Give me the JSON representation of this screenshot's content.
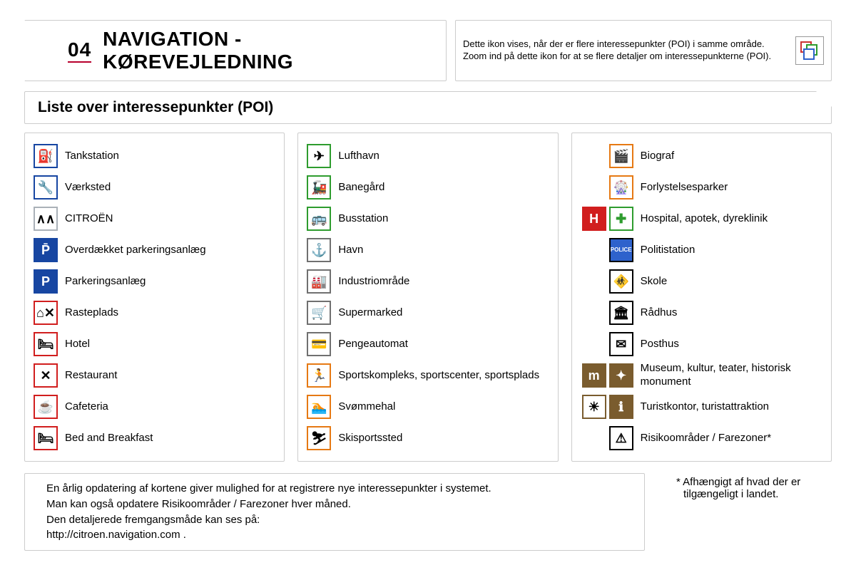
{
  "header": {
    "section_number": "04",
    "title": "NAVIGATION - KØREVEJLEDNING",
    "note": "Dette ikon vises, når der er flere interessepunkter (POI) i samme område. Zoom ind på dette ikon for at se flere detaljer om interessepunkterne (POI)."
  },
  "subtitle": "Liste over interessepunkter (POI)",
  "columns": {
    "col1": [
      {
        "label": "Tankstation",
        "icons": [
          {
            "glyph": "⛽",
            "border": "b-blue"
          }
        ]
      },
      {
        "label": "Værksted",
        "icons": [
          {
            "glyph": "🔧",
            "border": "b-blue"
          }
        ]
      },
      {
        "label": "CITROËN",
        "icons": [
          {
            "glyph": "∧∧",
            "border": "b-silver"
          }
        ]
      },
      {
        "label": "Overdækket parkeringsanlæg",
        "icons": [
          {
            "glyph": "P̄",
            "border": "b-blue",
            "fill": "fill-blue"
          }
        ]
      },
      {
        "label": "Parkeringsanlæg",
        "icons": [
          {
            "glyph": "P",
            "border": "b-blue",
            "fill": "fill-blue"
          }
        ]
      },
      {
        "label": "Rasteplads",
        "icons": [
          {
            "glyph": "⌂✕",
            "border": "b-red"
          }
        ]
      },
      {
        "label": "Hotel",
        "icons": [
          {
            "glyph": "🛏",
            "border": "b-red"
          }
        ]
      },
      {
        "label": "Restaurant",
        "icons": [
          {
            "glyph": "✕",
            "border": "b-red"
          }
        ]
      },
      {
        "label": "Cafeteria",
        "icons": [
          {
            "glyph": "☕",
            "border": "b-red"
          }
        ]
      },
      {
        "label": "Bed and Breakfast",
        "icons": [
          {
            "glyph": "🛏",
            "border": "b-red"
          }
        ]
      }
    ],
    "col2": [
      {
        "label": "Lufthavn",
        "icons": [
          {
            "glyph": "✈",
            "border": "b-green"
          }
        ]
      },
      {
        "label": "Banegård",
        "icons": [
          {
            "glyph": "🚂",
            "border": "b-green"
          }
        ]
      },
      {
        "label": "Busstation",
        "icons": [
          {
            "glyph": "🚌",
            "border": "b-green"
          }
        ]
      },
      {
        "label": "Havn",
        "icons": [
          {
            "glyph": "⚓",
            "border": "b-gray"
          }
        ]
      },
      {
        "label": "Industriområde",
        "icons": [
          {
            "glyph": "🏭",
            "border": "b-gray"
          }
        ]
      },
      {
        "label": "Supermarked",
        "icons": [
          {
            "glyph": "🛒",
            "border": "b-gray"
          }
        ]
      },
      {
        "label": "Pengeautomat",
        "icons": [
          {
            "glyph": "💳",
            "border": "b-gray"
          }
        ]
      },
      {
        "label": "Sportskompleks, sportscenter, sportsplads",
        "icons": [
          {
            "glyph": "🏃",
            "border": "b-orange"
          }
        ]
      },
      {
        "label": "Svømmehal",
        "icons": [
          {
            "glyph": "🏊",
            "border": "b-orange"
          }
        ]
      },
      {
        "label": "Skisportssted",
        "icons": [
          {
            "glyph": "⛷",
            "border": "b-orange"
          }
        ]
      }
    ],
    "col3": [
      {
        "label": "Biograf",
        "icons": [
          {
            "glyph": "🎬",
            "border": "b-orange"
          }
        ]
      },
      {
        "label": "Forlystelsesparker",
        "icons": [
          {
            "glyph": "🎡",
            "border": "b-orange"
          }
        ]
      },
      {
        "label": "Hospital, apotek, dyreklinik",
        "icons": [
          {
            "glyph": "H",
            "border": "b-red",
            "fill": "fill-red"
          },
          {
            "glyph": "✚",
            "border": "b-green",
            "color": "#2e9c2e"
          }
        ]
      },
      {
        "label": "Politistation",
        "icons": [
          {
            "glyph": "POLICE",
            "border": "b-black",
            "small": true,
            "fill": "fill-blue2"
          }
        ]
      },
      {
        "label": "Skole",
        "icons": [
          {
            "glyph": "🚸",
            "border": "b-black"
          }
        ]
      },
      {
        "label": "Rådhus",
        "icons": [
          {
            "glyph": "🏛",
            "border": "b-black"
          }
        ]
      },
      {
        "label": "Posthus",
        "icons": [
          {
            "glyph": "✉",
            "border": "b-black"
          }
        ]
      },
      {
        "label": "Museum, kultur, teater, historisk monument",
        "icons": [
          {
            "glyph": "m",
            "border": "b-brown",
            "fill": "fill-brown"
          },
          {
            "glyph": "✦",
            "border": "b-brown",
            "fill": "fill-brown"
          }
        ]
      },
      {
        "label": "Turistkontor, turistattraktion",
        "icons": [
          {
            "glyph": "☀",
            "border": "b-brown"
          },
          {
            "glyph": "ℹ",
            "border": "b-brown",
            "fill": "fill-brown"
          }
        ]
      },
      {
        "label": "Risikoområder / Farezoner*",
        "icons": [
          {
            "glyph": "⚠",
            "border": "b-black"
          }
        ]
      }
    ]
  },
  "update_note": {
    "l1": "En årlig opdatering af kortene giver mulighed for at registrere nye interessepunkter i systemet.",
    "l2": "Man kan også opdatere Risikoområder / Farezoner hver måned.",
    "l3": "Den detaljerede fremgangsmåde kan ses på:",
    "l4": "http://citroen.navigation.com ."
  },
  "footnote": "*  Afhængigt af hvad der er tilgængeligt i landet."
}
